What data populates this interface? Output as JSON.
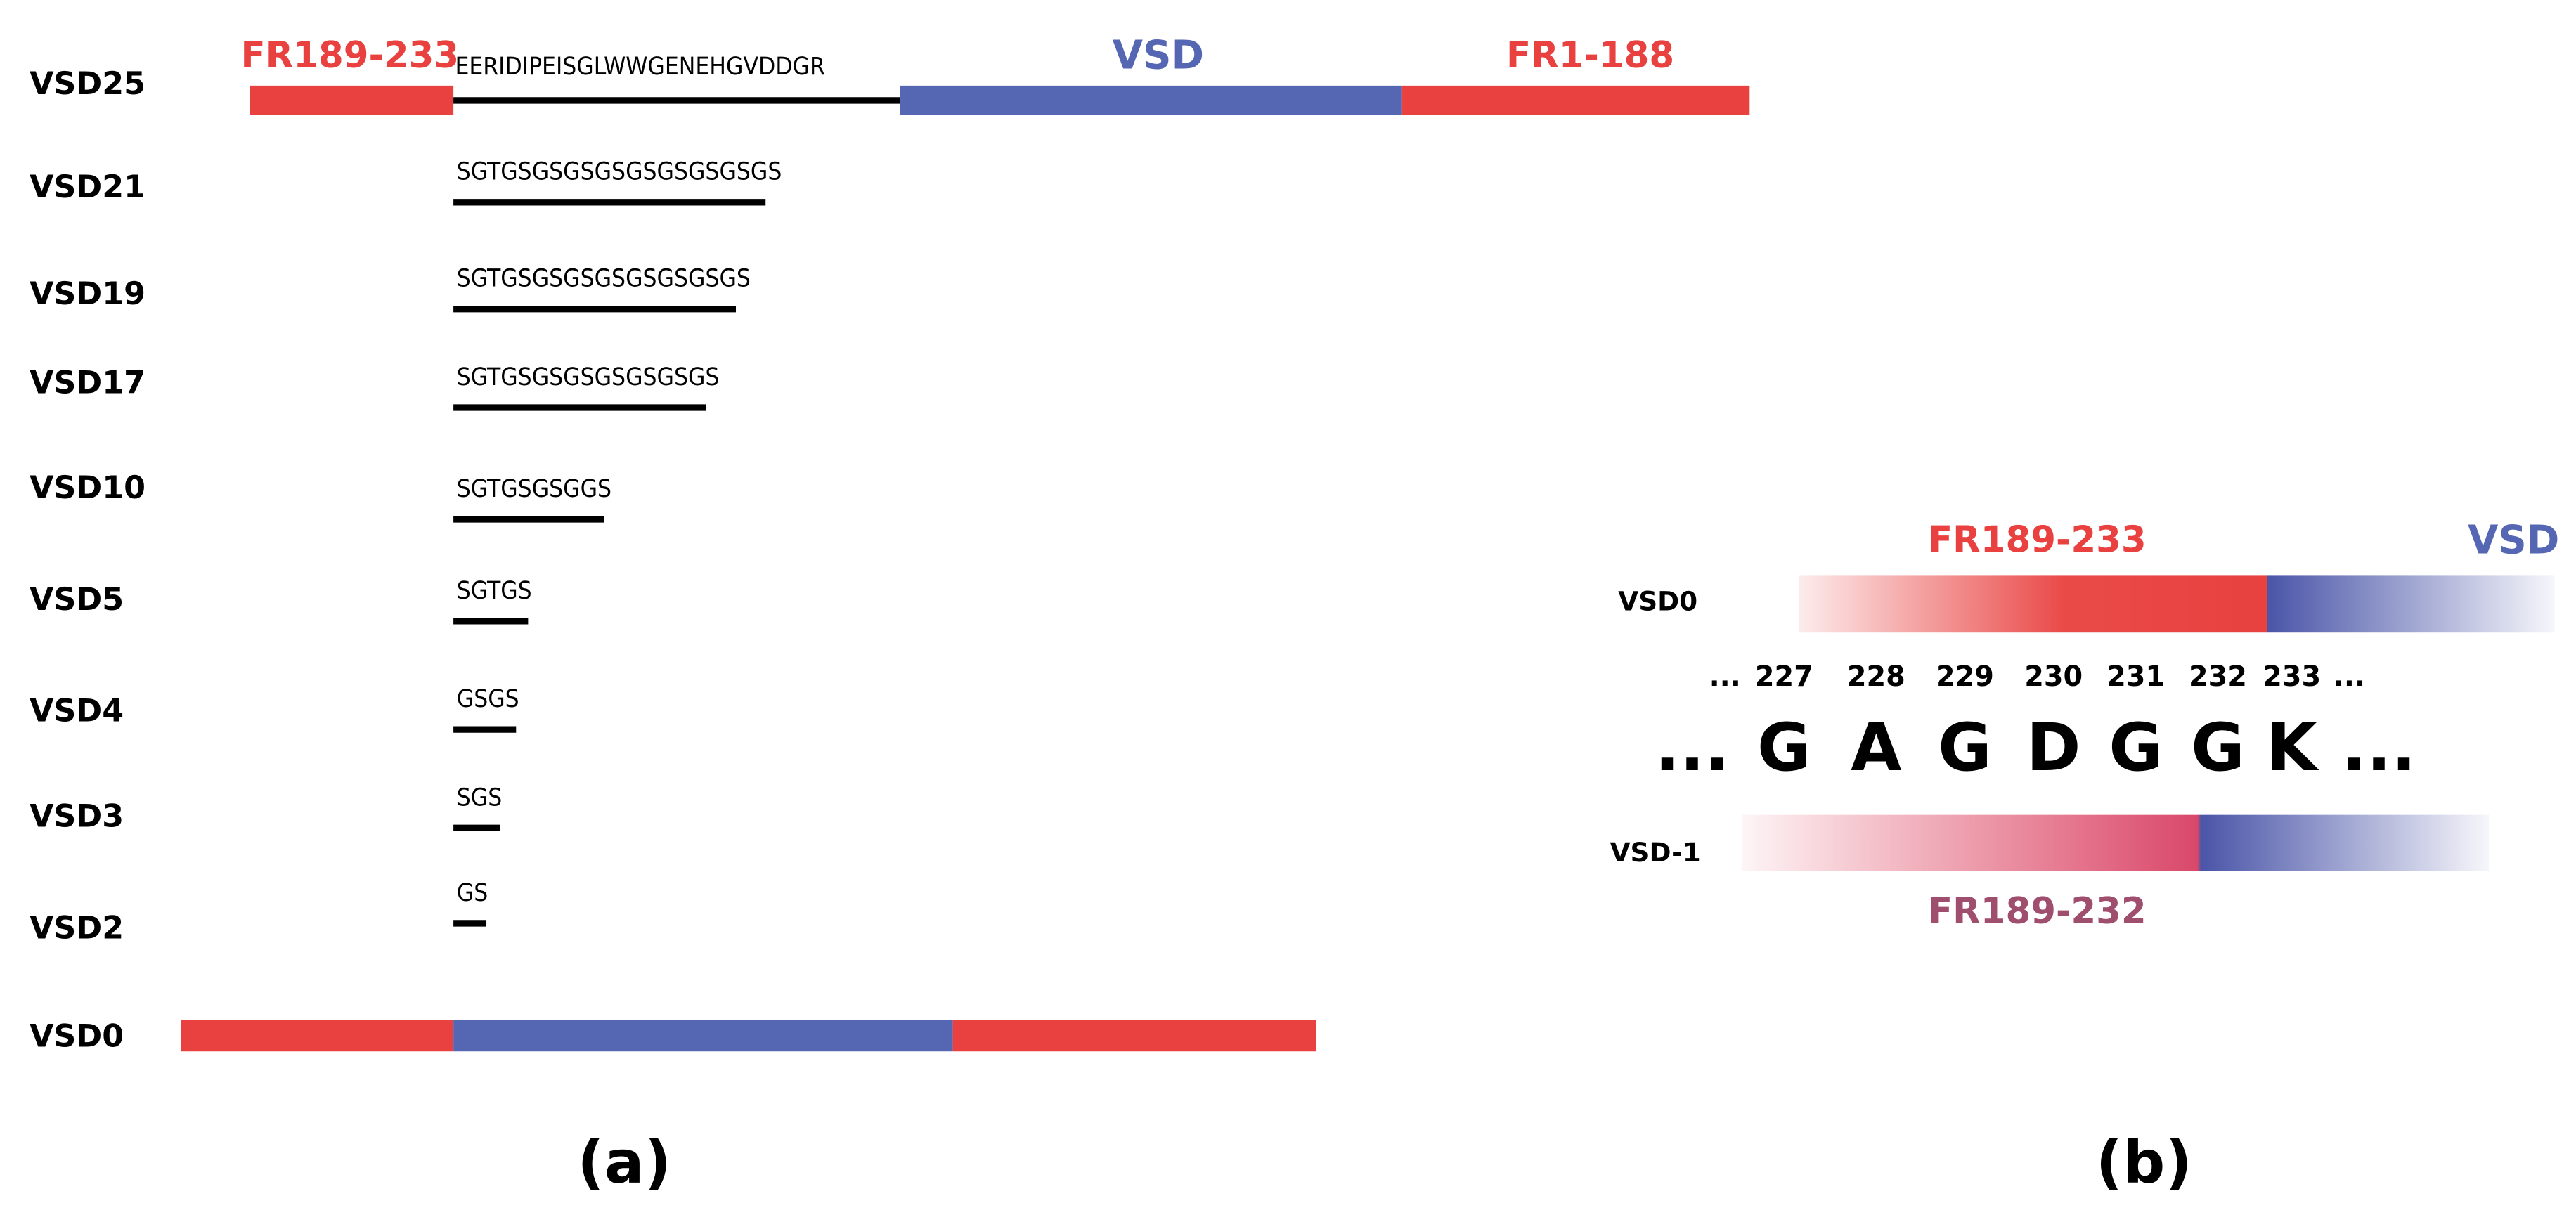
{
  "panel_a": {
    "label": "(a)",
    "segments": {
      "fr_n": "FR189-233",
      "vsd": "VSD",
      "fr_c": "FR1-188"
    },
    "rows": [
      {
        "name": "VSD25",
        "sequence": "EERIDIPEISGLWWGENEHGVDDGR"
      },
      {
        "name": "VSD21",
        "sequence": "SGTGSGSGSGSGSGSGSGSGS"
      },
      {
        "name": "VSD19",
        "sequence": "SGTGSGSGSGSGSGSGSGS"
      },
      {
        "name": "VSD17",
        "sequence": "SGTGSGSGSGSGSGSGS"
      },
      {
        "name": "VSD10",
        "sequence": "SGTGSGSGGS"
      },
      {
        "name": "VSD5",
        "sequence": "SGTGS"
      },
      {
        "name": "VSD4",
        "sequence": "GSGS"
      },
      {
        "name": "VSD3",
        "sequence": "SGS"
      },
      {
        "name": "VSD2",
        "sequence": "GS"
      }
    ],
    "bottom_row": "VSD0"
  },
  "panel_b": {
    "label": "(b)",
    "top": {
      "name": "VSD0",
      "fr": "FR189-233",
      "vsd": "VSD"
    },
    "bottom": {
      "name": "VSD-1",
      "fr": "FR189-232"
    },
    "ellipsis": "...",
    "positions": [
      {
        "number": "227",
        "residue": "G"
      },
      {
        "number": "228",
        "residue": "A"
      },
      {
        "number": "229",
        "residue": "G"
      },
      {
        "number": "230",
        "residue": "D"
      },
      {
        "number": "231",
        "residue": "G"
      },
      {
        "number": "232",
        "residue": "G"
      },
      {
        "number": "233",
        "residue": "K"
      }
    ]
  }
}
